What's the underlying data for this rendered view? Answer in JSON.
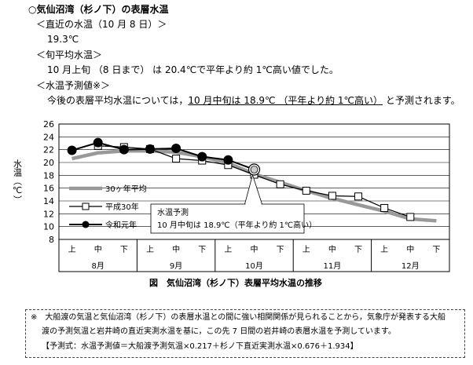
{
  "header": {
    "title": "○気仙沼湾（杉ノ下）の表層水温",
    "recent_label": "＜直近の水温（10 月 8 日）＞",
    "recent_value": "19.3℃",
    "ten_day_label": "＜旬平均水温＞",
    "ten_day_text": "10 月上旬 （8 日まで） は 20.4℃で平年より約 1℃高い値でした。",
    "forecast_label": "＜水温予測値※＞",
    "forecast_pre": "今後の表層平均水温については，",
    "forecast_ul": "10 月中旬は 18.9℃ （平年より約 1℃高い）",
    "forecast_post": " と予測されます。"
  },
  "chart_data": {
    "type": "line",
    "ylabel": "水温（℃）",
    "ylim": [
      8,
      26
    ],
    "yticks": [
      8,
      10,
      12,
      14,
      16,
      18,
      20,
      22,
      24,
      26
    ],
    "grid": true,
    "x_sub": [
      "上",
      "中",
      "下",
      "上",
      "中",
      "下",
      "上",
      "中",
      "下",
      "上",
      "中",
      "下",
      "上",
      "中",
      "下"
    ],
    "x_groups": [
      "8月",
      "9月",
      "10月",
      "11月",
      "12月"
    ],
    "series": [
      {
        "name": "30ヶ年平均",
        "color": "#999999",
        "values": [
          20.6,
          21.5,
          21.8,
          21.8,
          21.6,
          20.9,
          19.9,
          18.2,
          16.9,
          15.6,
          14.4,
          13.4,
          12.4,
          11.2,
          10.9
        ]
      },
      {
        "name": "平成30年",
        "color": "#000000",
        "values": [
          null,
          22.6,
          22.4,
          22.1,
          20.6,
          20.3,
          19.6,
          18.1,
          16.6,
          15.6,
          14.8,
          14.7,
          12.9,
          11.5,
          null
        ]
      },
      {
        "name": "令和元年",
        "color": "#000000",
        "values": [
          21.9,
          23.1,
          22.0,
          22.1,
          22.2,
          20.9,
          20.4,
          null,
          null,
          null,
          null,
          null,
          null,
          null,
          null
        ]
      }
    ],
    "forecast_point": {
      "index": 7,
      "value": 18.9
    },
    "annotation_line1": "水温予測",
    "annotation_line2": "10 月中旬は 18.9℃（平年より約 1℃高い）"
  },
  "caption": "図　気仙沼湾（杉ノ下）表層平均水温の推移",
  "note": {
    "line1": "※　大船渡の気温と気仙沼湾（杉ノ下）の表層水温との間に強い相関関係が見られることから，気象庁が発表する大船",
    "line2": "渡の予測気温と岩井崎の直近実測水温を基に，この先 7 日間の岩井崎の表層水温を予測しています。",
    "line3": "【予測式：水温予測値＝大船渡予測気温×0.217＋杉ノ下直近実測水温×0.676＋1.934】"
  }
}
